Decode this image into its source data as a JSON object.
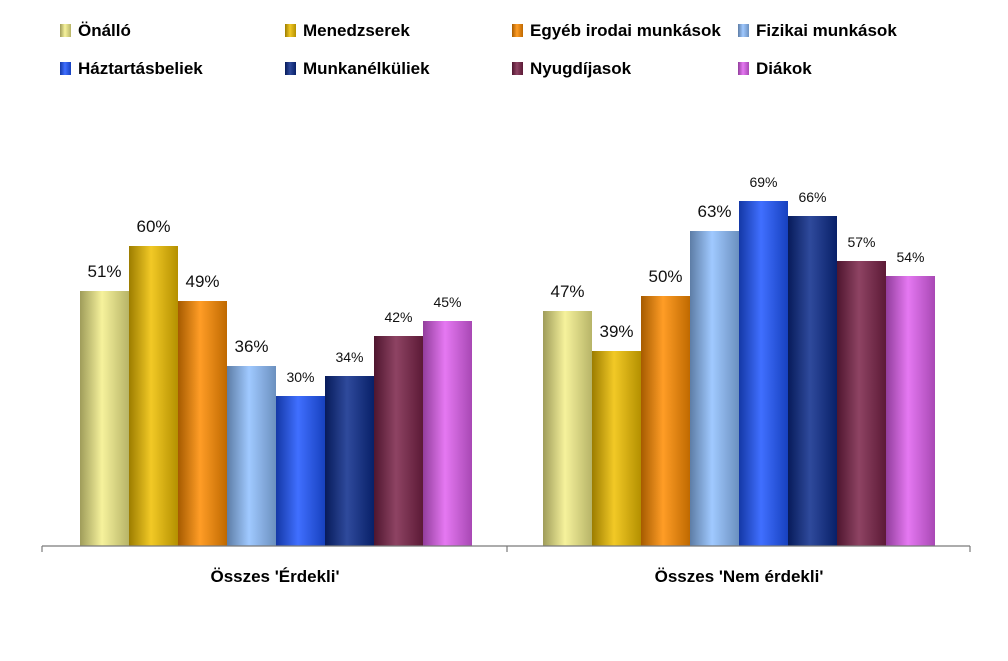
{
  "chart_data": {
    "type": "bar",
    "categories": [
      "Összes 'Érdekli'",
      "Összes 'Nem érdekli'"
    ],
    "series": [
      {
        "name": "Önálló",
        "values": [
          51,
          47
        ],
        "color": "#f4f08a"
      },
      {
        "name": "Menedzserek",
        "values": [
          60,
          39
        ],
        "color": "#f0c000"
      },
      {
        "name": "Egyéb irodai munkások",
        "values": [
          49,
          50
        ],
        "color": "#ff8c00"
      },
      {
        "name": "Fizikai munkások",
        "values": [
          36,
          63
        ],
        "color": "#8fc0ff"
      },
      {
        "name": "Háztartásbeliek",
        "values": [
          30,
          69
        ],
        "color": "#1e56ff"
      },
      {
        "name": "Munkanélküliek",
        "values": [
          34,
          66
        ],
        "color": "#0a2a8a"
      },
      {
        "name": "Nyugdíjasok",
        "values": [
          42,
          57
        ],
        "color": "#7a2248"
      },
      {
        "name": "Diákok",
        "values": [
          45,
          54
        ],
        "color": "#e060f0"
      }
    ],
    "data_labels": [
      [
        "51%",
        "47%"
      ],
      [
        "60%",
        "39%"
      ],
      [
        "49%",
        "50%"
      ],
      [
        "36%",
        "63%"
      ],
      [
        "30%",
        "69%"
      ],
      [
        "34%",
        "66%"
      ],
      [
        "42%",
        "57%"
      ],
      [
        "45%",
        "54%"
      ]
    ],
    "ylim": [
      0,
      75
    ],
    "grid": false,
    "legend_position": "top"
  }
}
